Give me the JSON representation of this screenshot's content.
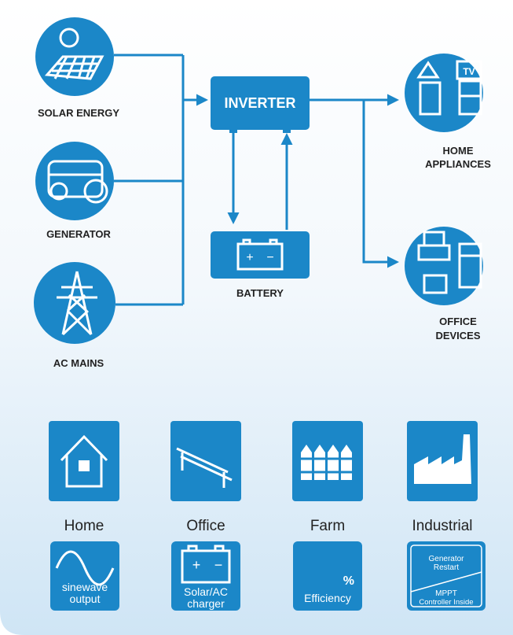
{
  "sources": [
    {
      "label": "SOLAR ENERGY"
    },
    {
      "label": "GENERATOR"
    },
    {
      "label": "AC MAINS"
    }
  ],
  "inverter": {
    "label": "INVERTER"
  },
  "battery": {
    "label": "BATTERY",
    "plus": "+",
    "minus": "−"
  },
  "loads": [
    {
      "label_lines": [
        "HOME",
        "APPLIANCES"
      ],
      "icon_text": "TV"
    },
    {
      "label_lines": [
        "OFFICE",
        "DEVICES"
      ]
    }
  ],
  "applications": [
    "Home",
    "Office",
    "Farm",
    "Industrial"
  ],
  "features": [
    {
      "lines": [
        "sinewave",
        "output"
      ]
    },
    {
      "plus": "+",
      "minus": "−",
      "lines": [
        "Solar/AC",
        "charger"
      ]
    },
    {
      "symbol": "%",
      "lines": [
        "Efficiency"
      ]
    },
    {
      "top_lines": [
        "Generator",
        "Restart"
      ],
      "lines": [
        "MPPT",
        "Controller Inside"
      ]
    }
  ]
}
